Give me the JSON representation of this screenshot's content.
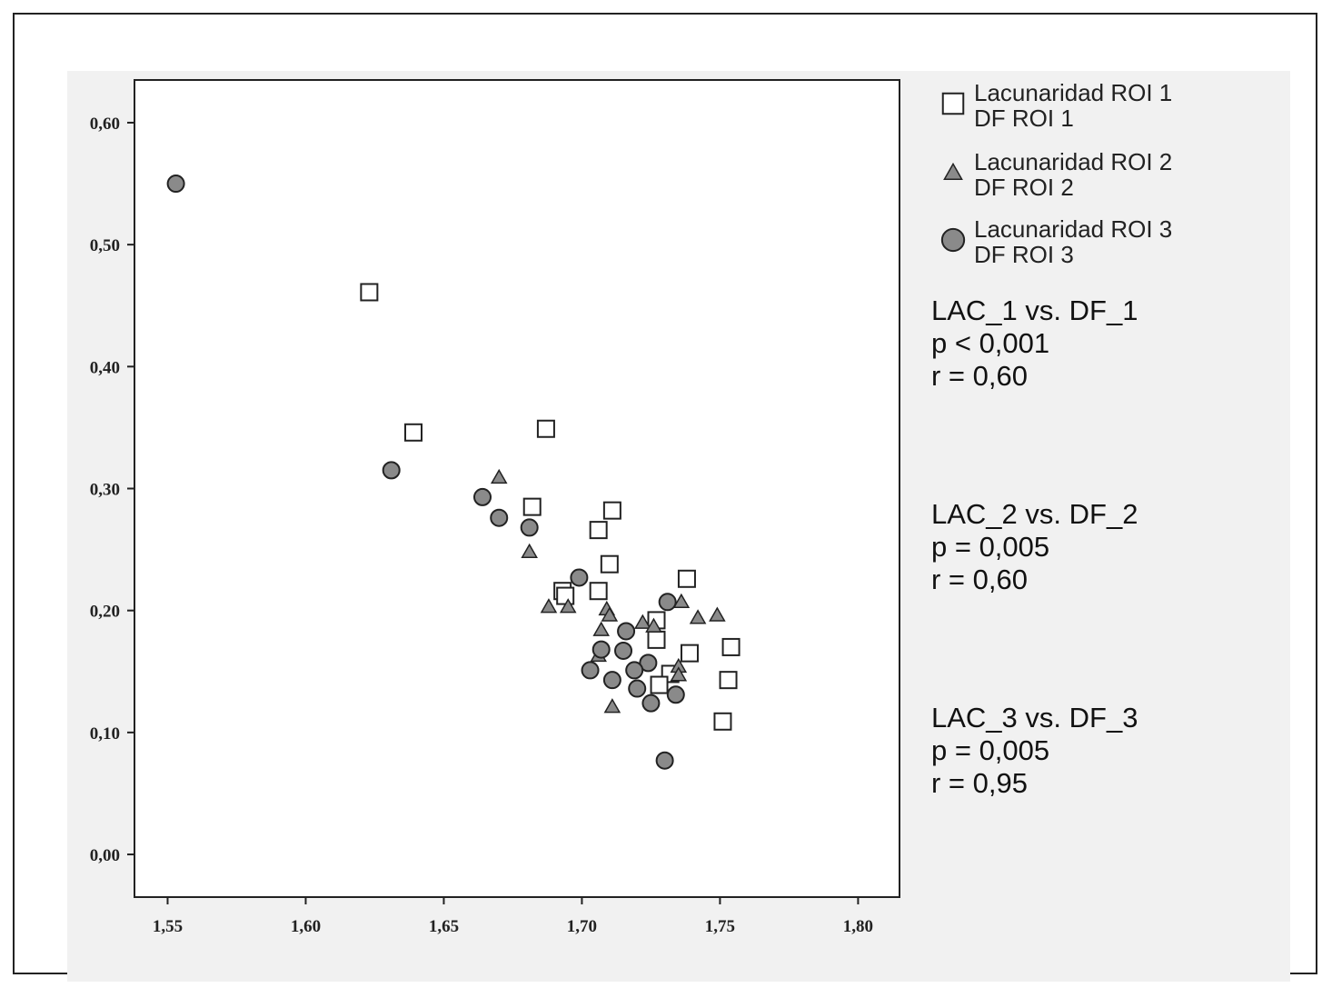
{
  "chart_data": {
    "type": "scatter",
    "title": "",
    "xlabel": "",
    "ylabel": "",
    "xlim": [
      1.538,
      1.815
    ],
    "ylim": [
      -0.035,
      0.635
    ],
    "x_ticks": [
      1.55,
      1.6,
      1.65,
      1.7,
      1.75,
      1.8
    ],
    "x_tick_labels": [
      "1,55",
      "1,60",
      "1,65",
      "1,70",
      "1,75",
      "1,80"
    ],
    "y_ticks": [
      0.0,
      0.1,
      0.2,
      0.3,
      0.4,
      0.5,
      0.6
    ],
    "y_tick_labels": [
      "0,00",
      "0,10",
      "0,20",
      "0,30",
      "0,40",
      "0,50",
      "0,60"
    ],
    "grid": false,
    "legend_position": "right",
    "series": [
      {
        "name": "Lacunaridad ROI 1 DF ROI 1",
        "legend_lines": [
          "Lacunaridad ROI 1",
          "DF ROI 1"
        ],
        "marker": "square",
        "color": "#ffffff",
        "points": [
          [
            1.623,
            0.461
          ],
          [
            1.639,
            0.346
          ],
          [
            1.687,
            0.349
          ],
          [
            1.682,
            0.285
          ],
          [
            1.711,
            0.282
          ],
          [
            1.706,
            0.266
          ],
          [
            1.71,
            0.238
          ],
          [
            1.738,
            0.226
          ],
          [
            1.693,
            0.216
          ],
          [
            1.706,
            0.216
          ],
          [
            1.694,
            0.212
          ],
          [
            1.727,
            0.192
          ],
          [
            1.727,
            0.176
          ],
          [
            1.754,
            0.17
          ],
          [
            1.739,
            0.165
          ],
          [
            1.732,
            0.148
          ],
          [
            1.753,
            0.143
          ],
          [
            1.728,
            0.139
          ],
          [
            1.751,
            0.109
          ]
        ]
      },
      {
        "name": "Lacunaridad ROI 2 DF ROI 2",
        "legend_lines": [
          "Lacunaridad ROI 2",
          "DF ROI 2"
        ],
        "marker": "triangle",
        "color": "#8a8a8a",
        "points": [
          [
            1.67,
            0.309
          ],
          [
            1.681,
            0.248
          ],
          [
            1.736,
            0.207
          ],
          [
            1.688,
            0.203
          ],
          [
            1.695,
            0.203
          ],
          [
            1.709,
            0.201
          ],
          [
            1.71,
            0.196
          ],
          [
            1.749,
            0.196
          ],
          [
            1.742,
            0.194
          ],
          [
            1.722,
            0.19
          ],
          [
            1.726,
            0.187
          ],
          [
            1.707,
            0.184
          ],
          [
            1.706,
            0.163
          ],
          [
            1.735,
            0.154
          ],
          [
            1.735,
            0.147
          ],
          [
            1.711,
            0.121
          ]
        ]
      },
      {
        "name": "Lacunaridad ROI 3 DF ROI 3",
        "legend_lines": [
          "Lacunaridad ROI 3",
          "DF ROI 3"
        ],
        "marker": "circle",
        "color": "#8a8a8a",
        "points": [
          [
            1.553,
            0.55
          ],
          [
            1.631,
            0.315
          ],
          [
            1.664,
            0.293
          ],
          [
            1.67,
            0.276
          ],
          [
            1.681,
            0.268
          ],
          [
            1.699,
            0.227
          ],
          [
            1.731,
            0.207
          ],
          [
            1.716,
            0.183
          ],
          [
            1.707,
            0.168
          ],
          [
            1.715,
            0.167
          ],
          [
            1.724,
            0.157
          ],
          [
            1.703,
            0.151
          ],
          [
            1.719,
            0.151
          ],
          [
            1.711,
            0.143
          ],
          [
            1.72,
            0.136
          ],
          [
            1.734,
            0.131
          ],
          [
            1.725,
            0.124
          ],
          [
            1.73,
            0.077
          ]
        ]
      }
    ],
    "annotations": [
      {
        "lines": [
          "LAC_1 vs. DF_1",
          "p < 0,001",
          "r = 0,60"
        ]
      },
      {
        "lines": [
          "LAC_2 vs. DF_2",
          "p = 0,005",
          "r = 0,60"
        ]
      },
      {
        "lines": [
          "LAC_3 vs. DF_3",
          "p = 0,005",
          "r = 0,95"
        ]
      }
    ]
  }
}
